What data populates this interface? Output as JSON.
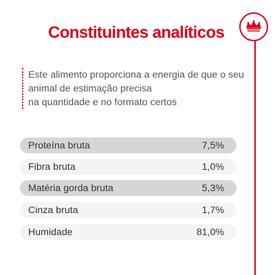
{
  "title": "Constituintes analíticos",
  "intro_lines": [
    "Este alimento proporciona a energia de que o seu",
    "animal de estimação precisa",
    "na quantidade e no formato certos"
  ],
  "rows": [
    {
      "label": "Proteína bruta",
      "value": "7,5%"
    },
    {
      "label": "Fibra bruta",
      "value": "1,0%"
    },
    {
      "label": "Matéria gorda bruta",
      "value": "5,3%"
    },
    {
      "label": "Cinza bruta",
      "value": "1,7%"
    },
    {
      "label": "Humidade",
      "value": "81,0%"
    }
  ],
  "colors": {
    "accent": "#e2001a",
    "row_dark": "#d6d6d6",
    "row_light": "#f4f4f4"
  },
  "icons": {
    "badge": "crown-icon"
  }
}
